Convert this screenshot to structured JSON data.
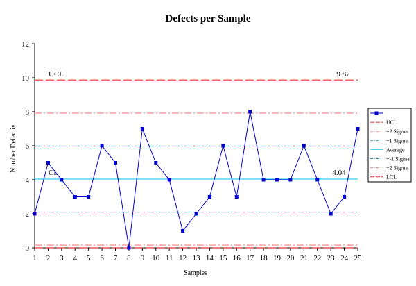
{
  "chart_data": {
    "type": "line",
    "title": "Defects per Sample",
    "xlabel": "Samples",
    "ylabel": "Number Defectiv",
    "ylim": [
      0,
      12
    ],
    "yticks": [
      0,
      2,
      4,
      6,
      8,
      10,
      12
    ],
    "x": [
      1,
      2,
      3,
      4,
      5,
      6,
      7,
      8,
      9,
      10,
      11,
      12,
      13,
      14,
      15,
      16,
      17,
      18,
      19,
      20,
      21,
      22,
      23,
      24,
      25
    ],
    "series": [
      {
        "name": "",
        "color": "#0000cc",
        "values": [
          2,
          5,
          4,
          3,
          3,
          6,
          5,
          0,
          7,
          5,
          4,
          1,
          2,
          3,
          6,
          3,
          8,
          4,
          4,
          4,
          6,
          4,
          2,
          3,
          7
        ]
      }
    ],
    "control_lines": [
      {
        "name": "UCL",
        "value": 9.87,
        "color": "#e03030",
        "dash": "long"
      },
      {
        "name": "+2 Sigma",
        "value": 7.92,
        "color": "#f08080",
        "dash": "dashdot"
      },
      {
        "name": "+1 Sigma",
        "value": 5.98,
        "color": "#2a9a9a",
        "dash": "dashdot"
      },
      {
        "name": "Average",
        "value": 4.04,
        "color": "#33ccee",
        "dash": "solid"
      },
      {
        "name": "+-1 Sigma",
        "value": 2.1,
        "color": "#2a9a9a",
        "dash": "dashdot"
      },
      {
        "name": "+2 Sigma",
        "value": 0.16,
        "color": "#f08080",
        "dash": "dashdot"
      },
      {
        "name": "LCL",
        "value": 0,
        "color": "#e03030",
        "dash": "long"
      }
    ],
    "annotations": [
      {
        "name": "ucl-label",
        "text": "UCL"
      },
      {
        "name": "ucl-value",
        "text": "9.87"
      },
      {
        "name": "cl-label",
        "text": "CL"
      },
      {
        "name": "cl-value",
        "text": "4.04"
      }
    ],
    "grid": false,
    "legend_position": "right"
  }
}
